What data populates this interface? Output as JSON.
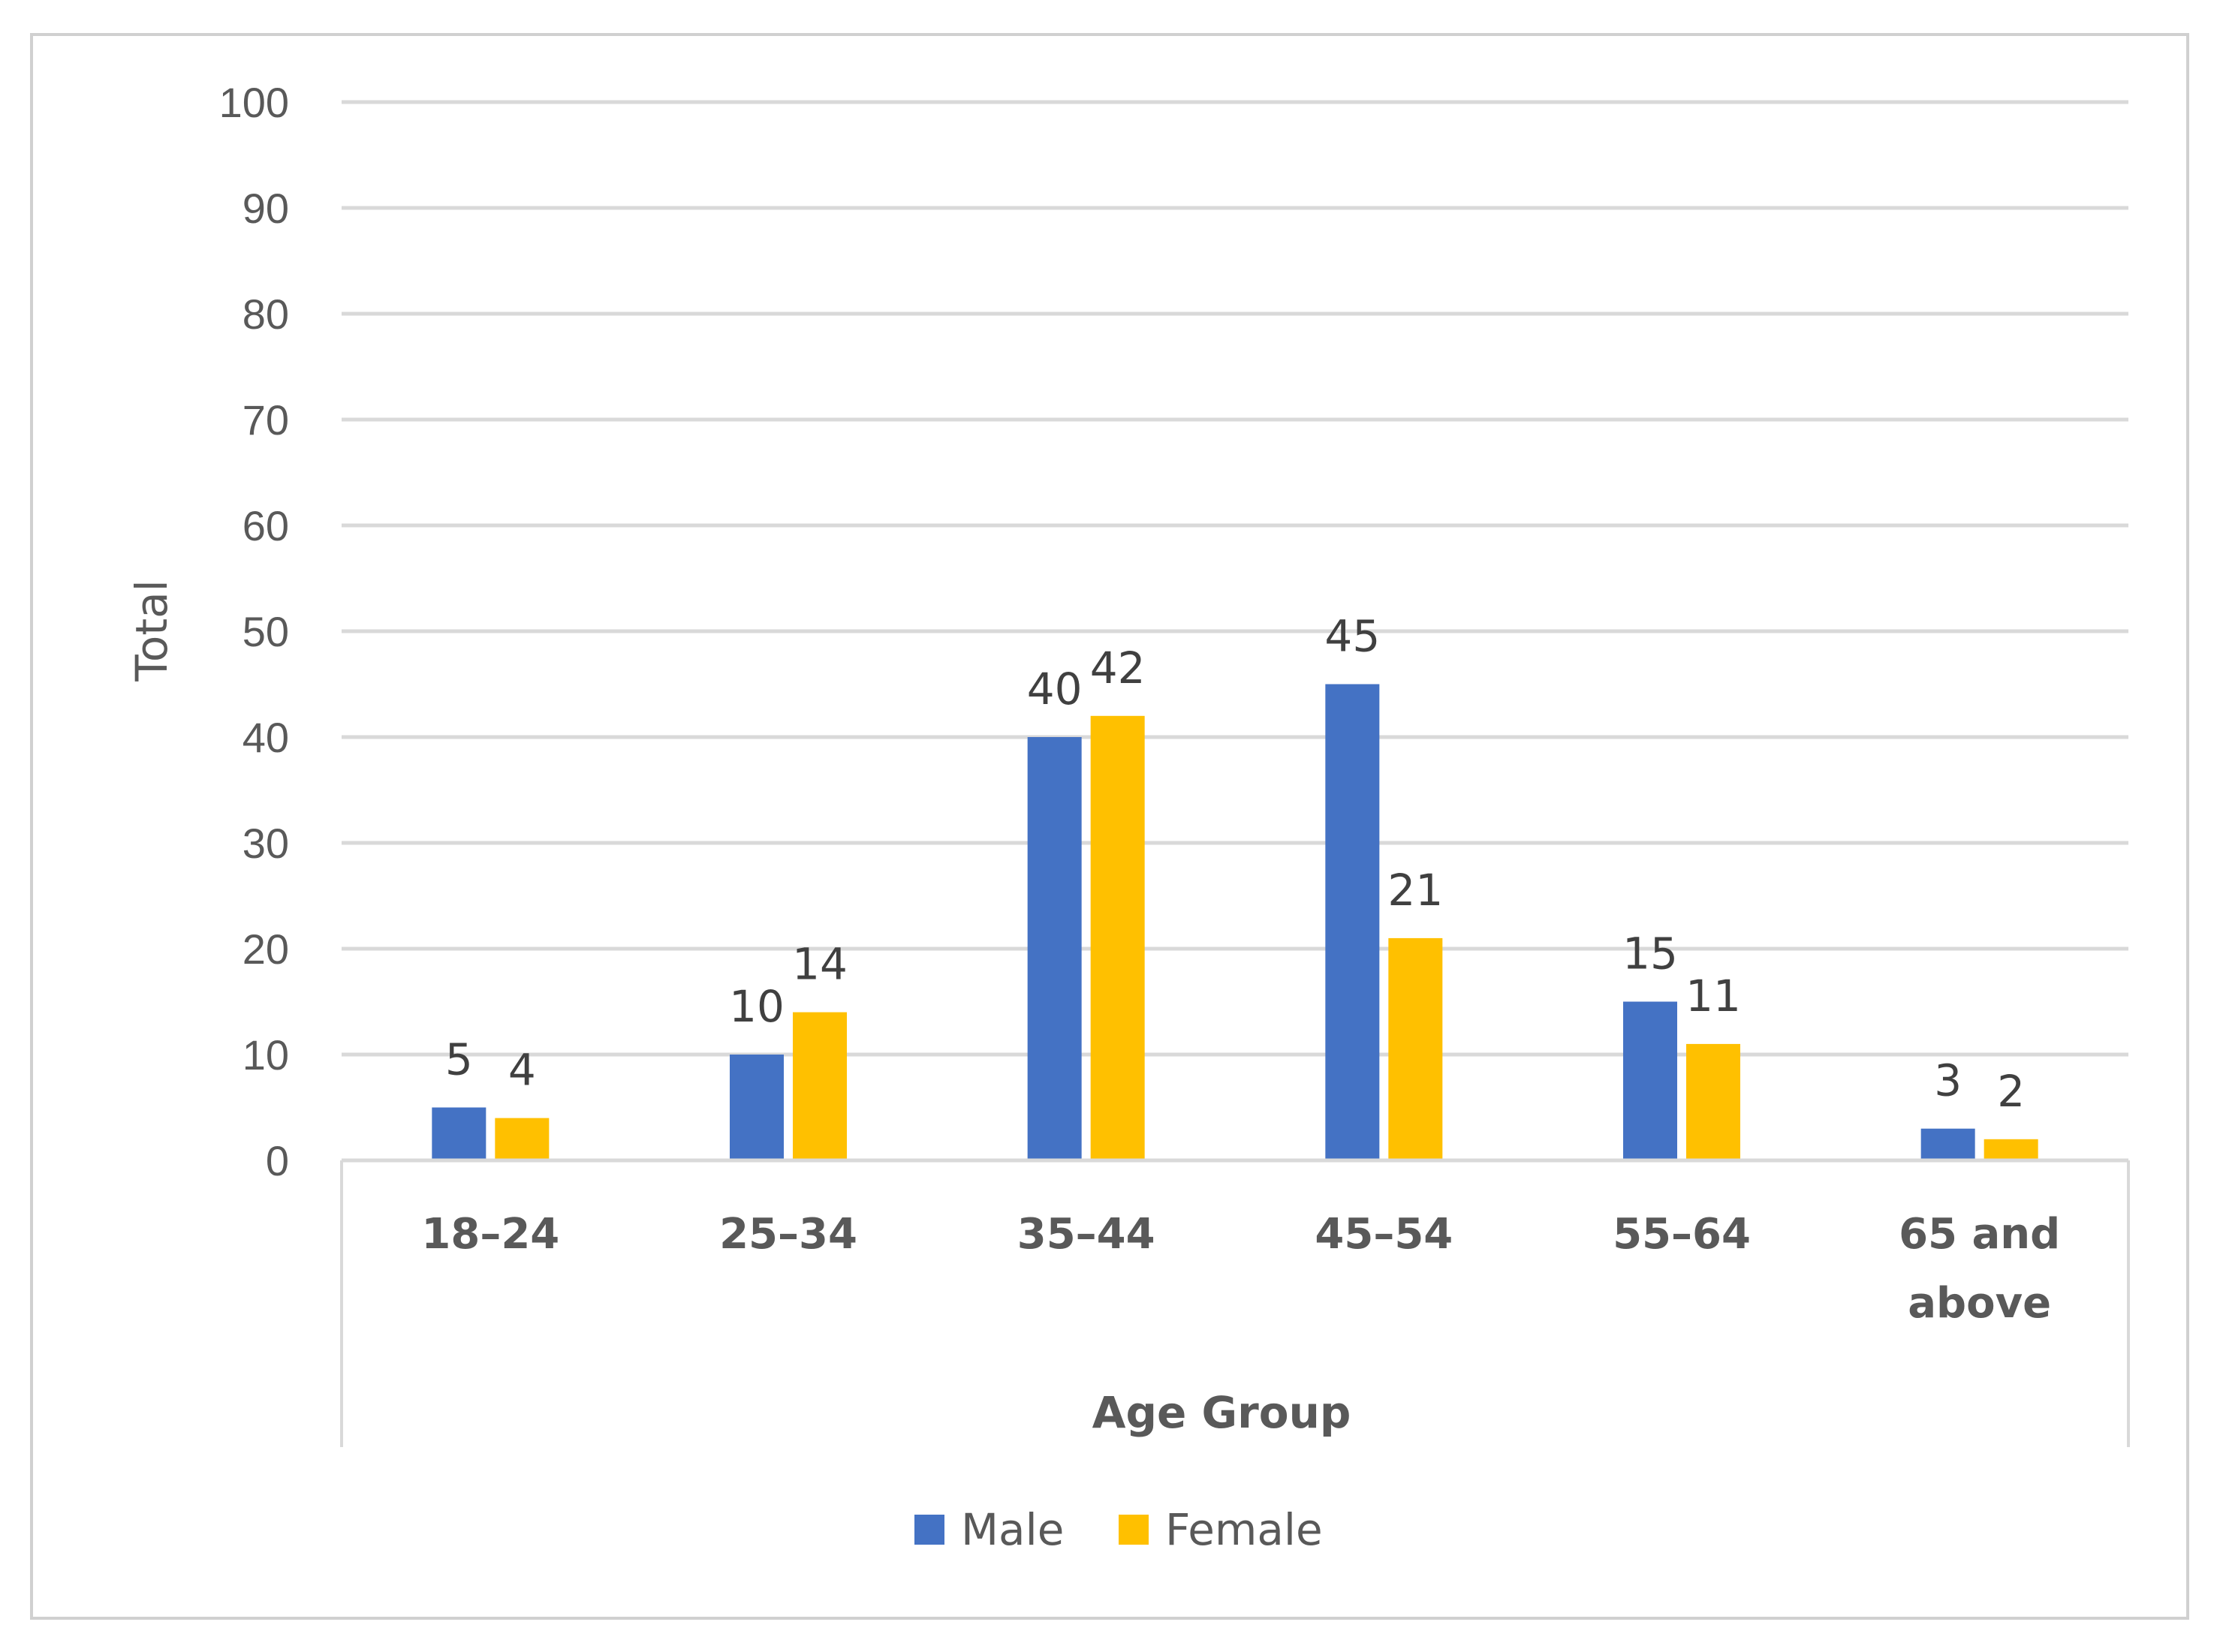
{
  "chart_data": {
    "type": "bar",
    "title": "",
    "xlabel": "Age Group",
    "ylabel": "Total",
    "ylim": [
      0,
      100
    ],
    "yticks": [
      0,
      10,
      20,
      30,
      40,
      50,
      60,
      70,
      80,
      90,
      100
    ],
    "categories": [
      [
        "18–24"
      ],
      [
        "25–34"
      ],
      [
        "35–44"
      ],
      [
        "45–54"
      ],
      [
        "55–64"
      ],
      [
        "65 and",
        "above"
      ]
    ],
    "series": [
      {
        "name": "Male",
        "color": "#4472C4",
        "values": [
          5,
          10,
          40,
          45,
          15,
          3
        ]
      },
      {
        "name": "Female",
        "color": "#FFC000",
        "values": [
          4,
          14,
          42,
          21,
          11,
          2
        ]
      }
    ],
    "gridlines": true,
    "legend_position": "bottom"
  }
}
